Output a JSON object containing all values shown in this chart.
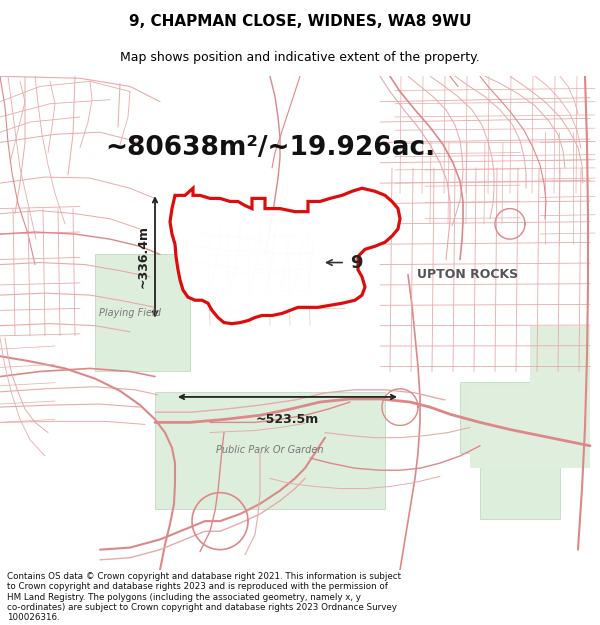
{
  "title": "9, CHAPMAN CLOSE, WIDNES, WA8 9WU",
  "subtitle": "Map shows position and indicative extent of the property.",
  "area_m2": "~80638m²/~19.926ac.",
  "dim_width": "~523.5m",
  "dim_height": "~336.4m",
  "label_num": "9",
  "label_place": "UPTON ROCKS",
  "label_playing": "Playing Field",
  "label_park": "Public Park Or Garden",
  "footer_line1": "Contains OS data © Crown copyright and database right 2021. This information is subject",
  "footer_line2": "to Crown copyright and database rights 2023 and is reproduced with the permission of",
  "footer_line3": "HM Land Registry. The polygons (including the associated geometry, namely x, y",
  "footer_line4": "co-ordinates) are subject to Crown copyright and database rights 2023 Ordnance Survey",
  "footer_line5": "100026316.",
  "bg_color": "#ffffff",
  "map_bg": "#f9f6f2",
  "road_thin": "#e8aaaa",
  "road_med": "#dd8888",
  "road_thick": "#cc6666",
  "green_light": "#ddeedd",
  "green_med": "#cce0cc",
  "prop_fill": "#ffffff",
  "prop_edge": "#dd0000",
  "prop_lw": 2.5,
  "text_dark": "#111111",
  "text_mid": "#555555",
  "dim_color": "#222222"
}
